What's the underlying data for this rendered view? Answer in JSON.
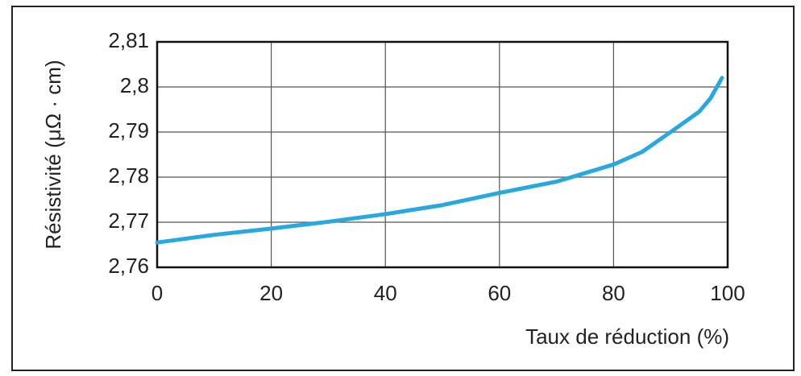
{
  "chart_data": {
    "type": "line",
    "ylabel": "Résistivité (μΩ · cm)",
    "xlabel": "Taux de réduction (%)",
    "x": [
      0,
      10,
      20,
      30,
      40,
      50,
      60,
      70,
      80,
      85,
      90,
      95,
      97,
      99
    ],
    "series": [
      {
        "color": "#29a8e0",
        "values": [
          2.7655,
          2.7672,
          2.7686,
          2.7701,
          2.7718,
          2.7738,
          2.7765,
          2.779,
          2.7828,
          2.7856,
          2.79,
          2.7945,
          2.7975,
          2.802
        ]
      }
    ],
    "xlim": [
      0,
      100
    ],
    "xticks": [
      0,
      20,
      40,
      60,
      80,
      100
    ],
    "ylim": [
      2.76,
      2.81
    ],
    "yticks": [
      {
        "value": 2.76,
        "label": "2,76"
      },
      {
        "value": 2.77,
        "label": "2,77"
      },
      {
        "value": 2.78,
        "label": "2,78"
      },
      {
        "value": 2.79,
        "label": "2,79"
      },
      {
        "value": 2.8,
        "label": "2,8"
      },
      {
        "value": 2.81,
        "label": "2,81"
      }
    ],
    "grid": true
  }
}
